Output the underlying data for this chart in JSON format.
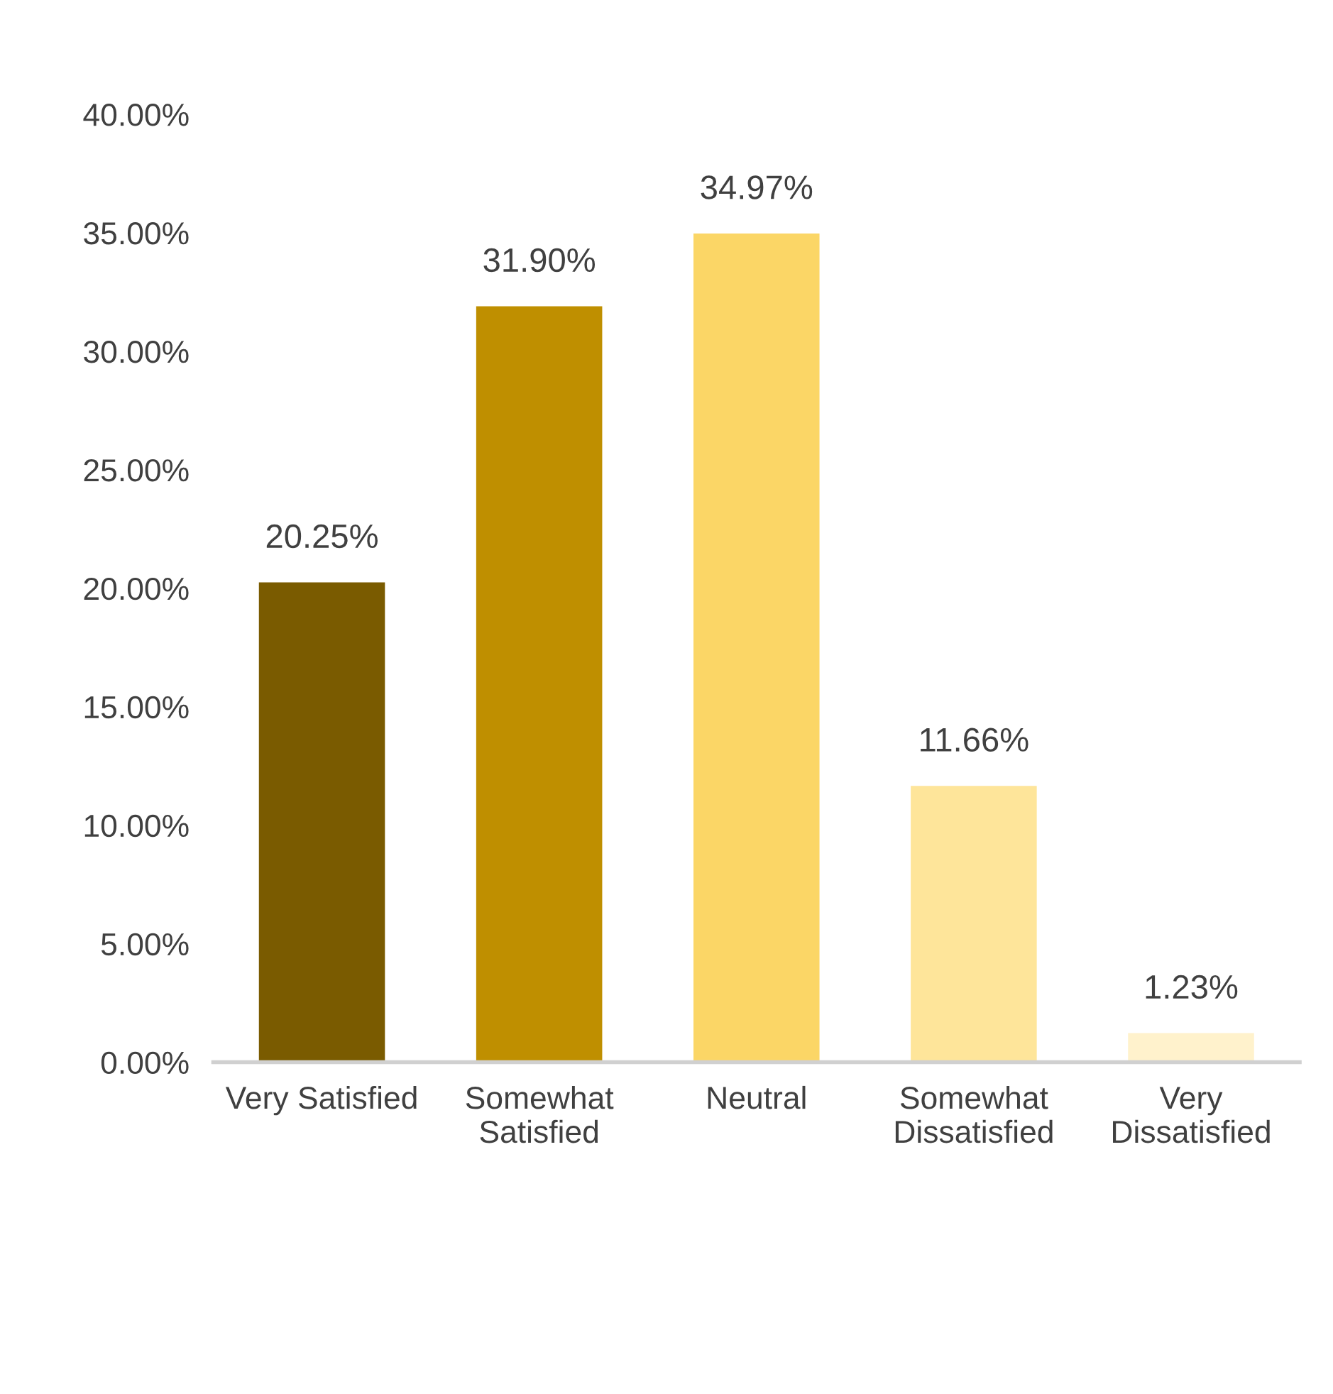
{
  "chart_data": {
    "type": "bar",
    "categories": [
      "Very Satisfied",
      "Somewhat\nSatisfied",
      "Neutral",
      "Somewhat\nDissatisfied",
      "Very\nDissatisfied"
    ],
    "values": [
      20.25,
      31.9,
      34.97,
      11.66,
      1.23
    ],
    "colors": [
      "#7a5b00",
      "#bf8f00",
      "#fbd666",
      "#fee59a",
      "#fff2cc"
    ],
    "value_labels": [
      "20.25%",
      "31.90%",
      "34.97%",
      "11.66%",
      "1.23%"
    ],
    "ylim": [
      0,
      40
    ],
    "yticks": [
      {
        "value": 0,
        "label": "0.00%"
      },
      {
        "value": 5,
        "label": "5.00%"
      },
      {
        "value": 10,
        "label": "10.00%"
      },
      {
        "value": 15,
        "label": "15.00%"
      },
      {
        "value": 20,
        "label": "20.00%"
      },
      {
        "value": 25,
        "label": "25.00%"
      },
      {
        "value": 30,
        "label": "30.00%"
      },
      {
        "value": 35,
        "label": "35.00%"
      },
      {
        "value": 40,
        "label": "40.00%"
      }
    ],
    "grid": false,
    "legend": false
  }
}
